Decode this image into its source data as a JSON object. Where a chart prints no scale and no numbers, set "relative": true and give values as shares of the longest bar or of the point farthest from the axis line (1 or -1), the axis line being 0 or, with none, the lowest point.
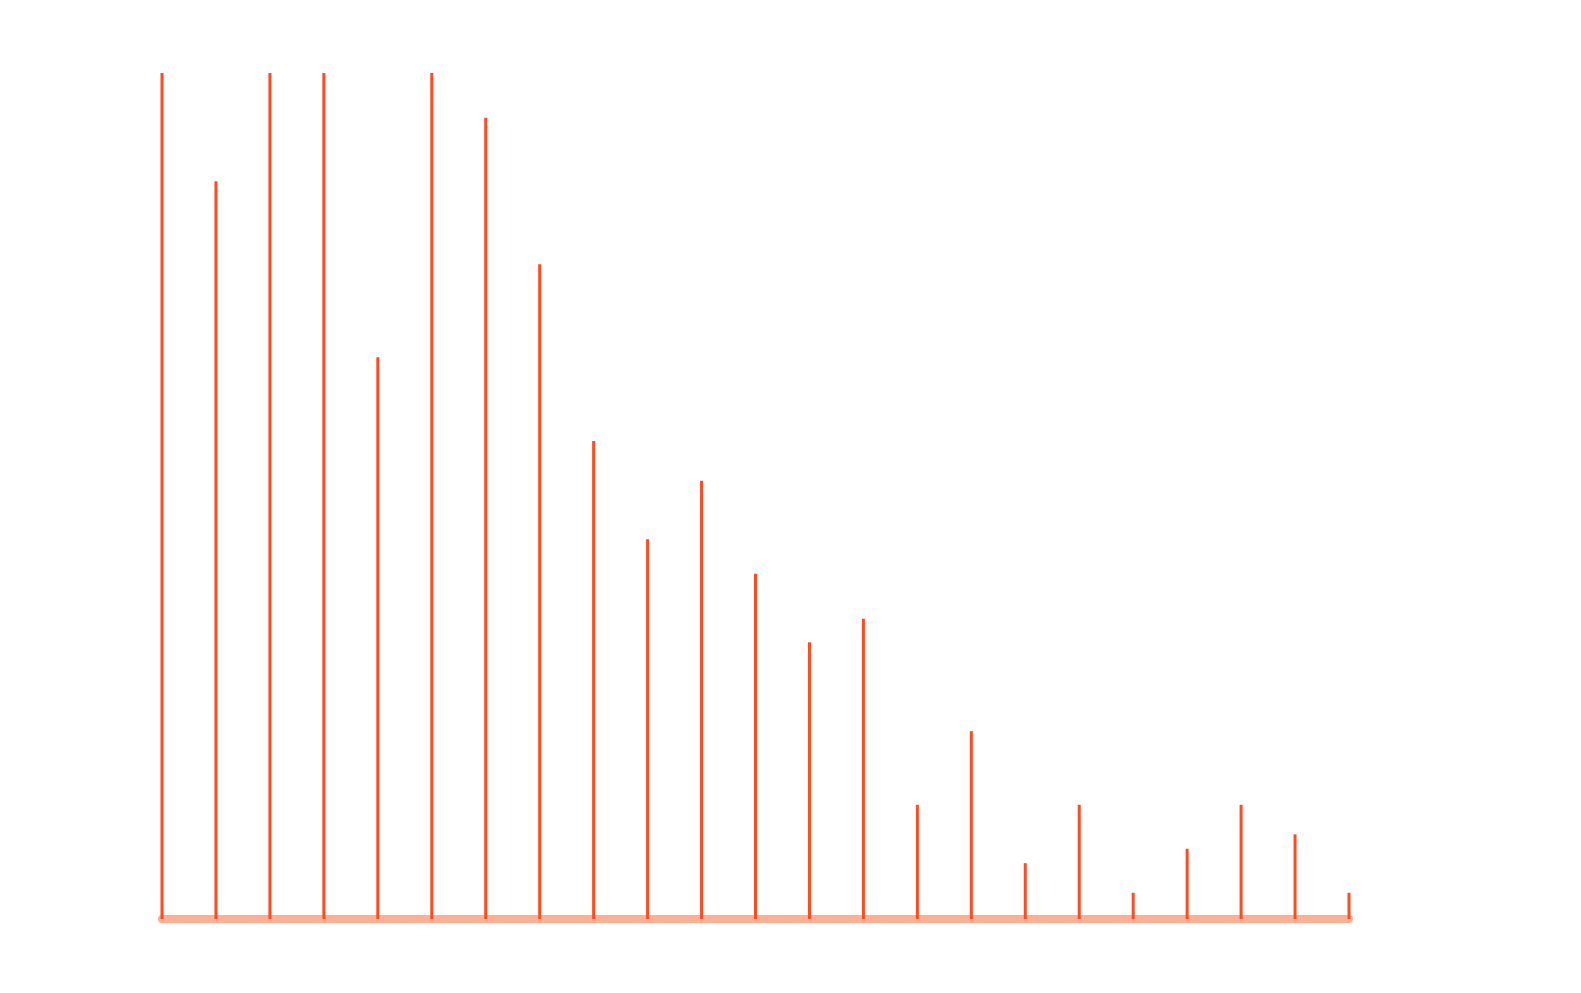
{
  "chart_data": {
    "type": "bar",
    "relative": true,
    "color": "#ff4a22",
    "grid": false,
    "categories": [
      null,
      null,
      null,
      null,
      null,
      null,
      null,
      null,
      null,
      null,
      null,
      null,
      null,
      null,
      null,
      null,
      null,
      null,
      null,
      null,
      null,
      null,
      null
    ],
    "values": [
      1,
      0.872,
      1,
      1,
      0.664,
      1,
      0.947,
      0.774,
      0.565,
      0.449,
      0.518,
      0.408,
      0.327,
      0.355,
      0.135,
      0.222,
      0.066,
      0.135,
      0.031,
      0.083,
      0.135,
      0.1,
      0.031
    ]
  }
}
